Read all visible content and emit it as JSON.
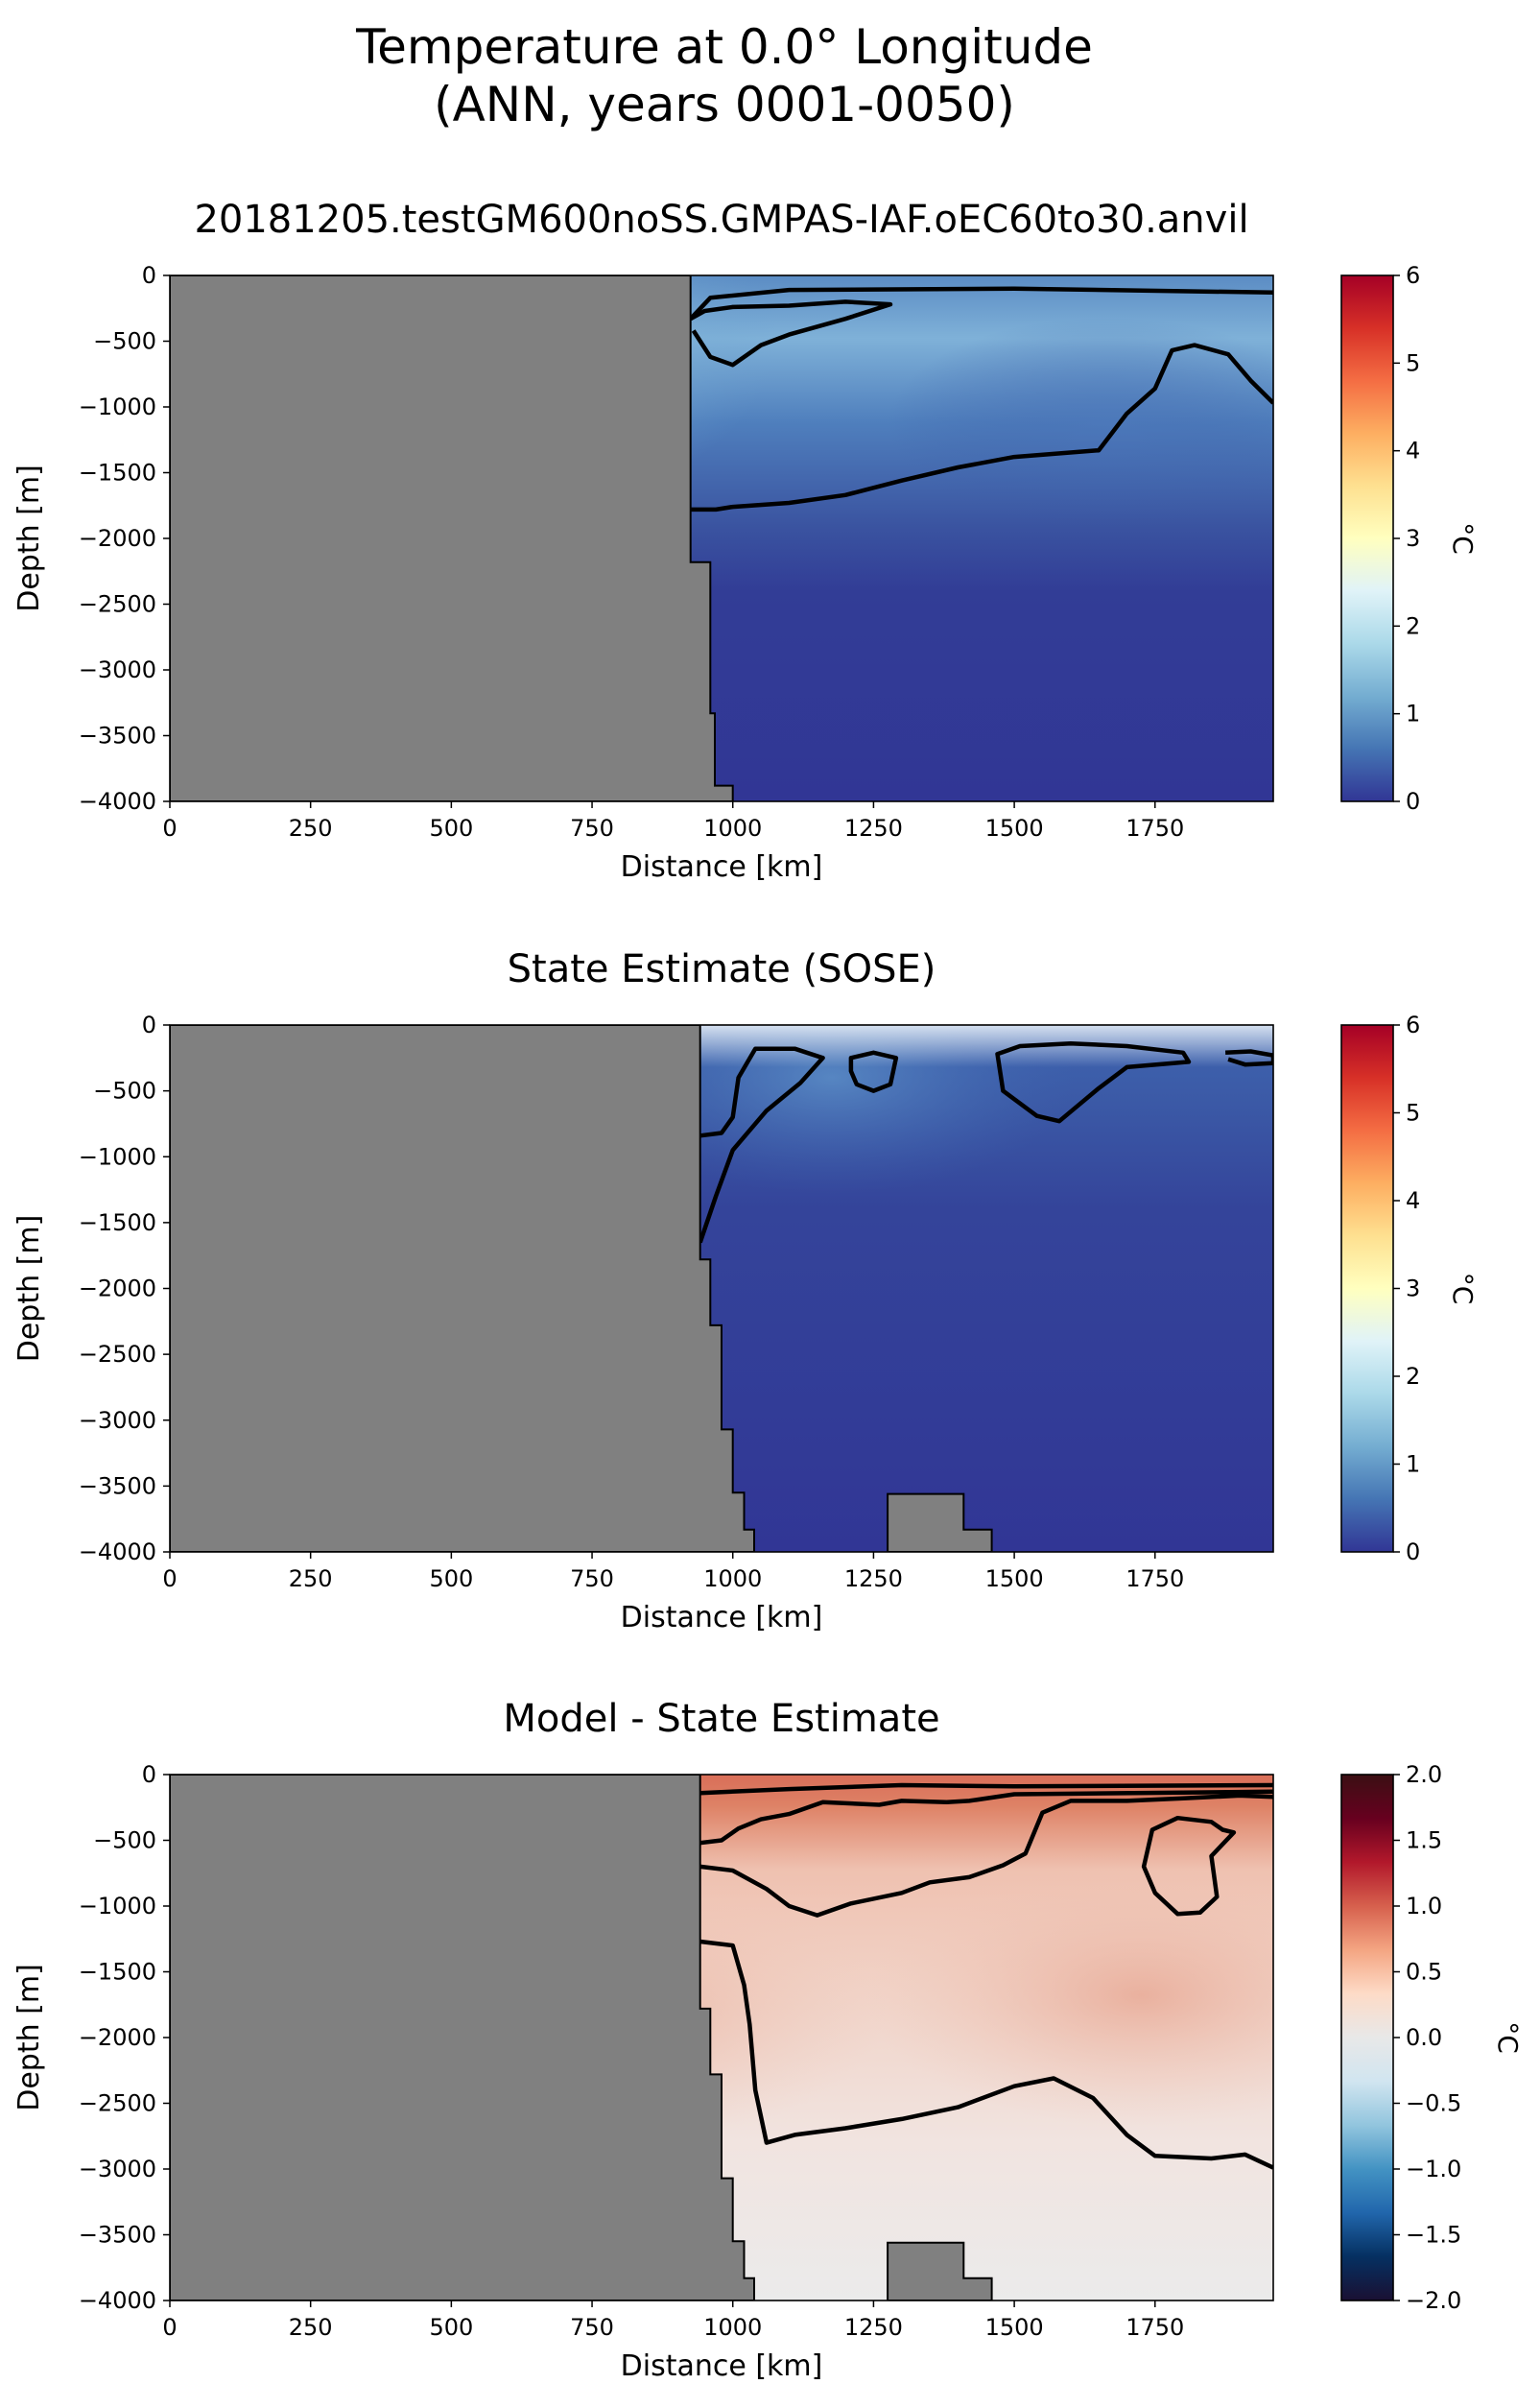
{
  "figure": {
    "suptitle_line1": "Temperature at 0.0° Longitude",
    "suptitle_line2": "(ANN, years 0001-0050)"
  },
  "panels": [
    {
      "title": "20181205.testGM600noSS.GMPAS-IAF.oEC60to30.anvil",
      "xlabel": "Distance [km]",
      "ylabel": "Depth [m]",
      "colorbar_label": "°C",
      "colormap": "RdYlBu_r",
      "colorbar_ticks": [
        "0",
        "1",
        "2",
        "3",
        "4",
        "5",
        "6"
      ],
      "contour_levels": [
        0.5,
        1.5
      ],
      "xticks": [
        "0",
        "250",
        "500",
        "750",
        "1000",
        "1250",
        "1500",
        "1750"
      ],
      "yticks": [
        "0",
        "−500",
        "−1000",
        "−1500",
        "−2000",
        "−2500",
        "−3000",
        "−3500",
        "−4000"
      ]
    },
    {
      "title": "State Estimate (SOSE)",
      "xlabel": "Distance [km]",
      "ylabel": "Depth [m]",
      "colorbar_label": "°C",
      "colormap": "RdYlBu_r",
      "colorbar_ticks": [
        "0",
        "1",
        "2",
        "3",
        "4",
        "5",
        "6"
      ],
      "contour_levels": [
        0.5
      ],
      "xticks": [
        "0",
        "250",
        "500",
        "750",
        "1000",
        "1250",
        "1500",
        "1750"
      ],
      "yticks": [
        "0",
        "−500",
        "−1000",
        "−1500",
        "−2000",
        "−2500",
        "−3000",
        "−3500",
        "−4000"
      ]
    },
    {
      "title": "Model - State Estimate",
      "xlabel": "Distance [km]",
      "ylabel": "Depth [m]",
      "colorbar_label": "°C",
      "colormap": "RdBu_r",
      "colorbar_ticks": [
        "−2.0",
        "−1.5",
        "−1.0",
        "−0.5",
        "0.0",
        "0.5",
        "1.0",
        "1.5",
        "2.0"
      ],
      "contour_levels": [
        0.25,
        0.5,
        0.75,
        1.0
      ],
      "xticks": [
        "0",
        "250",
        "500",
        "750",
        "1000",
        "1250",
        "1500",
        "1750"
      ],
      "yticks": [
        "0",
        "−500",
        "−1000",
        "−1500",
        "−2000",
        "−2500",
        "−3000",
        "−3500",
        "−4000"
      ]
    }
  ],
  "chart_data": [
    {
      "type": "heatmap",
      "title": "20181205.testGM600noSS.GMPAS-IAF.oEC60to30.anvil",
      "variable": "Temperature",
      "units": "°C",
      "xlabel": "Distance [km]",
      "ylabel": "Depth [m]",
      "xlim": [
        0,
        1960
      ],
      "ylim": [
        -4000,
        0
      ],
      "clim": [
        0,
        6
      ],
      "colormap": "RdYlBu_r",
      "field_summary": "Cold water (≈0–0.5 °C) below ~1500 m; warmer (≈1–2 °C) lens between 200–800 m depth near 950–1300 km",
      "land_mask_profile": [
        [
          925,
          0
        ],
        [
          925,
          -2180
        ],
        [
          960,
          -2180
        ],
        [
          960,
          -3330
        ],
        [
          968,
          -3330
        ],
        [
          968,
          -3880
        ],
        [
          1000,
          -3880
        ],
        [
          1000,
          -4000
        ]
      ],
      "contours": [
        {
          "level": 1.5,
          "points": [
            [
              925,
              -330
            ],
            [
              950,
              -270
            ],
            [
              1000,
              -240
            ],
            [
              1100,
              -230
            ],
            [
              1200,
              -200
            ],
            [
              1280,
              -220
            ],
            [
              1200,
              -330
            ],
            [
              1100,
              -450
            ],
            [
              1050,
              -530
            ],
            [
              1000,
              -680
            ],
            [
              960,
              -620
            ],
            [
              930,
              -420
            ]
          ]
        },
        {
          "level": 0.5,
          "points": [
            [
              925,
              -1780
            ],
            [
              970,
              -1780
            ],
            [
              1000,
              -1760
            ],
            [
              1100,
              -1730
            ],
            [
              1200,
              -1670
            ],
            [
              1300,
              -1560
            ],
            [
              1400,
              -1460
            ],
            [
              1500,
              -1380
            ],
            [
              1650,
              -1330
            ],
            [
              1700,
              -1050
            ],
            [
              1750,
              -860
            ],
            [
              1780,
              -570
            ],
            [
              1820,
              -530
            ],
            [
              1880,
              -600
            ],
            [
              1920,
              -800
            ],
            [
              1960,
              -970
            ]
          ]
        },
        {
          "level": 0.5,
          "points": [
            [
              925,
              -330
            ],
            [
              960,
              -170
            ],
            [
              1100,
              -110
            ],
            [
              1500,
              -100
            ],
            [
              1960,
              -130
            ]
          ]
        }
      ]
    },
    {
      "type": "heatmap",
      "title": "State Estimate (SOSE)",
      "variable": "Temperature",
      "units": "°C",
      "xlabel": "Distance [km]",
      "ylabel": "Depth [m]",
      "xlim": [
        0,
        1960
      ],
      "ylim": [
        -4000,
        0
      ],
      "clim": [
        0,
        6
      ],
      "colormap": "RdYlBu_r",
      "field_summary": "Mostly 0–0.5 °C; patches of ≈0.5–1 °C in upper 800 m and along western slope",
      "land_mask_profile": [
        [
          942,
          0
        ],
        [
          942,
          -1780
        ],
        [
          960,
          -1780
        ],
        [
          960,
          -2280
        ],
        [
          980,
          -2280
        ],
        [
          980,
          -3070
        ],
        [
          1000,
          -3070
        ],
        [
          1000,
          -3550
        ],
        [
          1020,
          -3550
        ],
        [
          1020,
          -3830
        ],
        [
          1038,
          -3830
        ],
        [
          1038,
          -4000
        ]
      ],
      "seamount": [
        [
          1275,
          -4000
        ],
        [
          1275,
          -3560
        ],
        [
          1410,
          -3560
        ],
        [
          1410,
          -3830
        ],
        [
          1460,
          -3830
        ],
        [
          1460,
          -4000
        ]
      ],
      "contours": [
        {
          "level": 0.5,
          "points": [
            [
              942,
              -840
            ],
            [
              980,
              -820
            ],
            [
              1000,
              -700
            ],
            [
              1010,
              -400
            ],
            [
              1040,
              -180
            ],
            [
              1110,
              -180
            ],
            [
              1160,
              -250
            ],
            [
              1120,
              -440
            ],
            [
              1060,
              -650
            ],
            [
              1000,
              -950
            ],
            [
              970,
              -1300
            ],
            [
              942,
              -1650
            ]
          ]
        },
        {
          "level": 0.5,
          "points": [
            [
              1210,
              -250
            ],
            [
              1250,
              -210
            ],
            [
              1290,
              -250
            ],
            [
              1280,
              -450
            ],
            [
              1250,
              -500
            ],
            [
              1220,
              -450
            ],
            [
              1210,
              -350
            ]
          ]
        },
        {
          "level": 0.5,
          "points": [
            [
              1470,
              -220
            ],
            [
              1510,
              -160
            ],
            [
              1600,
              -140
            ],
            [
              1700,
              -160
            ],
            [
              1800,
              -210
            ],
            [
              1810,
              -280
            ],
            [
              1700,
              -320
            ],
            [
              1650,
              -480
            ],
            [
              1580,
              -730
            ],
            [
              1540,
              -690
            ],
            [
              1480,
              -500
            ]
          ]
        },
        {
          "level": 0.5,
          "points": [
            [
              1875,
              -210
            ],
            [
              1920,
              -200
            ],
            [
              1960,
              -230
            ],
            [
              1960,
              -290
            ],
            [
              1910,
              -300
            ],
            [
              1880,
              -260
            ]
          ]
        }
      ]
    },
    {
      "type": "heatmap",
      "title": "Model - State Estimate",
      "variable": "Temperature difference",
      "units": "°C",
      "xlabel": "Distance [km]",
      "ylabel": "Depth [m]",
      "xlim": [
        0,
        1960
      ],
      "ylim": [
        -4000,
        0
      ],
      "clim": [
        -2,
        2
      ],
      "colormap": "RdBu_r",
      "field_summary": "Positive bias (≈0.5–1.5 °C) in upper 700 m near 950–1500 km; weak positive (≈0.2–0.4 °C) bias at depth",
      "land_mask_profile": [
        [
          942,
          0
        ],
        [
          942,
          -1780
        ],
        [
          960,
          -1780
        ],
        [
          960,
          -2280
        ],
        [
          980,
          -2280
        ],
        [
          980,
          -3070
        ],
        [
          1000,
          -3070
        ],
        [
          1000,
          -3550
        ],
        [
          1020,
          -3550
        ],
        [
          1020,
          -3830
        ],
        [
          1038,
          -3830
        ],
        [
          1038,
          -4000
        ]
      ],
      "seamount": [
        [
          1275,
          -4000
        ],
        [
          1275,
          -3560
        ],
        [
          1410,
          -3560
        ],
        [
          1410,
          -3830
        ],
        [
          1460,
          -3830
        ],
        [
          1460,
          -4000
        ]
      ],
      "contours": [
        {
          "level": 0.25,
          "points": [
            [
              942,
              -1270
            ],
            [
              1000,
              -1300
            ],
            [
              1020,
              -1600
            ],
            [
              1030,
              -1900
            ],
            [
              1040,
              -2400
            ],
            [
              1060,
              -2800
            ],
            [
              1110,
              -2740
            ],
            [
              1200,
              -2690
            ],
            [
              1300,
              -2620
            ],
            [
              1400,
              -2530
            ],
            [
              1500,
              -2370
            ],
            [
              1570,
              -2310
            ],
            [
              1640,
              -2460
            ],
            [
              1700,
              -2740
            ],
            [
              1750,
              -2900
            ],
            [
              1850,
              -2920
            ],
            [
              1910,
              -2890
            ],
            [
              1960,
              -2990
            ]
          ]
        },
        {
          "level": 0.5,
          "points": [
            [
              942,
              -700
            ],
            [
              1000,
              -730
            ],
            [
              1060,
              -870
            ],
            [
              1100,
              -1000
            ],
            [
              1150,
              -1070
            ],
            [
              1210,
              -980
            ],
            [
              1300,
              -900
            ],
            [
              1350,
              -820
            ],
            [
              1420,
              -780
            ],
            [
              1480,
              -690
            ],
            [
              1520,
              -600
            ],
            [
              1550,
              -290
            ],
            [
              1600,
              -200
            ],
            [
              1700,
              -200
            ],
            [
              1800,
              -180
            ],
            [
              1900,
              -160
            ],
            [
              1960,
              -170
            ]
          ]
        },
        {
          "level": 0.75,
          "points": [
            [
              942,
              -520
            ],
            [
              980,
              -500
            ],
            [
              1010,
              -410
            ],
            [
              1050,
              -340
            ],
            [
              1100,
              -300
            ],
            [
              1160,
              -210
            ],
            [
              1260,
              -230
            ],
            [
              1300,
              -200
            ],
            [
              1380,
              -210
            ],
            [
              1420,
              -200
            ],
            [
              1500,
              -150
            ],
            [
              1960,
              -130
            ]
          ]
        },
        {
          "level": 1.0,
          "points": [
            [
              942,
              -140
            ],
            [
              1100,
              -110
            ],
            [
              1300,
              -80
            ],
            [
              1500,
              -90
            ],
            [
              1960,
              -80
            ]
          ]
        },
        {
          "level": 0.25,
          "points": [
            [
              1745,
              -420
            ],
            [
              1790,
              -330
            ],
            [
              1850,
              -360
            ],
            [
              1870,
              -420
            ],
            [
              1890,
              -440
            ],
            [
              1850,
              -620
            ],
            [
              1860,
              -930
            ],
            [
              1830,
              -1050
            ],
            [
              1790,
              -1060
            ],
            [
              1750,
              -900
            ],
            [
              1730,
              -700
            ]
          ]
        }
      ]
    }
  ]
}
